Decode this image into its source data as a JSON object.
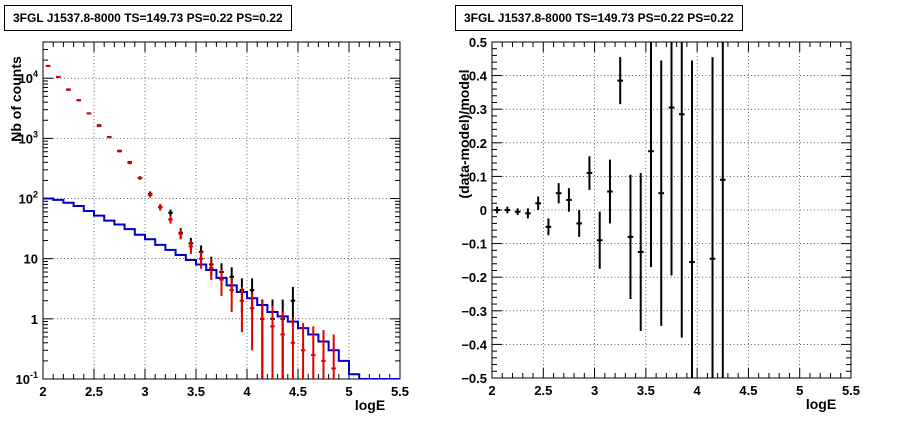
{
  "left_panel": {
    "title": "3FGL J1537.8-8000 TS=149.73 PS=0.22 PS=0.22"
  },
  "right_panel": {
    "title": "3FGL J1537.8-8000 TS=149.73 PS=0.22 PS=0.22"
  },
  "chart_data": [
    {
      "type": "scatter",
      "title": "3FGL J1537.8-8000 TS=149.73 PS=0.22 PS=0.22",
      "xlabel": "logE",
      "ylabel": "Nb of counts",
      "xlim": [
        2,
        5.5
      ],
      "ylim": [
        0.1,
        40000
      ],
      "yscale": "log",
      "grid": true,
      "x_ticks": [
        "2",
        "2.5",
        "3",
        "3.5",
        "4",
        "4.5",
        "5",
        "5.5"
      ],
      "y_ticks": [
        {
          "base": "10",
          "exp": "-1"
        },
        {
          "base": "1",
          "exp": ""
        },
        {
          "base": "10",
          "exp": ""
        },
        {
          "base": "10",
          "exp": "2"
        },
        {
          "base": "10",
          "exp": "3"
        },
        {
          "base": "10",
          "exp": "4"
        }
      ],
      "colors": {
        "data": "#000000",
        "model_total": "#dd0000",
        "background": "#0000cc"
      },
      "bin_edges": [
        2.0,
        2.1,
        2.2,
        2.3,
        2.4,
        2.5,
        2.6,
        2.7,
        2.8,
        2.9,
        3.0,
        3.1,
        3.2,
        3.3,
        3.4,
        3.5,
        3.6,
        3.7,
        3.8,
        3.9,
        4.0,
        4.1,
        4.2,
        4.3,
        4.4,
        4.5,
        4.6,
        4.7,
        4.8,
        4.9,
        5.0,
        5.1,
        5.2,
        5.3,
        5.4,
        5.5
      ],
      "series": [
        {
          "x": [
            2.05,
            2.15,
            2.25,
            2.35,
            2.45,
            2.55,
            2.65,
            2.75,
            2.85,
            2.95,
            3.05,
            3.15,
            3.25,
            3.35,
            3.45,
            3.55,
            3.65,
            3.75,
            3.85,
            3.95,
            4.05,
            4.15,
            4.25,
            4.35,
            4.45
          ],
          "y": [
            16000,
            10500,
            6500,
            4300,
            2600,
            1650,
            1050,
            620,
            400,
            220,
            120,
            72,
            58,
            27,
            18,
            13,
            8,
            6,
            5,
            3,
            3,
            1,
            1,
            1,
            2
          ],
          "yerr_low": [
            130,
            100,
            80,
            66,
            51,
            41,
            32,
            25,
            20,
            15,
            11,
            8.5,
            7.6,
            5.2,
            4.2,
            3.6,
            2.8,
            2.4,
            2.2,
            1.7,
            1.7,
            0.9,
            0.9,
            0.9,
            1.2
          ],
          "yerr_high": [
            130,
            100,
            80,
            66,
            51,
            41,
            32,
            25,
            20,
            15,
            11,
            8.5,
            7.6,
            5.2,
            4.2,
            3.6,
            2.8,
            2.4,
            2.2,
            1.7,
            1.7,
            1.1,
            1.1,
            1.1,
            1.4
          ]
        },
        {
          "x": [
            2.05,
            2.15,
            2.25,
            2.35,
            2.45,
            2.55,
            2.65,
            2.75,
            2.85,
            2.95,
            3.05,
            3.15,
            3.25,
            3.35,
            3.45,
            3.55,
            3.65,
            3.75,
            3.85,
            3.95,
            4.05,
            4.15,
            4.25,
            4.35,
            4.45,
            4.55,
            4.65,
            4.75,
            4.85
          ],
          "y": [
            16000,
            10500,
            6400,
            4300,
            2600,
            1600,
            1050,
            610,
            390,
            220,
            115,
            72,
            45,
            26,
            16,
            10,
            7,
            4.5,
            3,
            2,
            1.5,
            1,
            0.75,
            0.55,
            0.4,
            0.3,
            0.25,
            0.2,
            0.15
          ],
          "yerr_low": [
            130,
            100,
            80,
            66,
            51,
            40,
            32,
            25,
            20,
            15,
            11,
            8.5,
            6.7,
            5.1,
            4,
            3.2,
            2.6,
            2.1,
            1.7,
            1.4,
            1.2,
            0.95,
            0.65,
            0.45,
            0.32,
            0.22,
            0.17,
            0.12,
            0.08
          ],
          "yerr_high": [
            130,
            100,
            80,
            66,
            51,
            40,
            32,
            25,
            20,
            15,
            11,
            8.5,
            6.7,
            5.1,
            4,
            3.2,
            2.6,
            2.1,
            1.7,
            1.4,
            1.2,
            1.0,
            0.9,
            0.75,
            0.65,
            0.55,
            0.5,
            0.45,
            0.4
          ]
        },
        {
          "type": "step",
          "y": [
            100,
            95,
            85,
            75,
            62,
            52,
            43,
            37,
            31,
            25,
            21,
            17,
            14,
            11.5,
            9.5,
            8,
            6.5,
            4.8,
            3.6,
            2.8,
            2.2,
            1.7,
            1.3,
            1.1,
            0.9,
            0.7,
            0.55,
            0.42,
            0.3,
            0.2,
            0.12,
            0.1,
            0.1,
            0.1,
            0.1
          ]
        }
      ]
    },
    {
      "type": "scatter",
      "title": "3FGL J1537.8-8000 TS=149.73 PS=0.22 PS=0.22",
      "xlabel": "logE",
      "ylabel": "(data-model)/model",
      "xlim": [
        2,
        5.5
      ],
      "ylim": [
        -0.5,
        0.5
      ],
      "grid": true,
      "x_ticks": [
        "2",
        "2.5",
        "3",
        "3.5",
        "4",
        "4.5",
        "5",
        "5.5"
      ],
      "y_ticks": [
        "−0.5",
        "−0.4",
        "−0.3",
        "−0.2",
        "−0.1",
        "0",
        "0.1",
        "0.2",
        "0.3",
        "0.4",
        "0.5"
      ],
      "series": [
        {
          "x": [
            2.05,
            2.15,
            2.25,
            2.35,
            2.45,
            2.55,
            2.65,
            2.75,
            2.85,
            2.95,
            3.05,
            3.15,
            3.25,
            3.35,
            3.45,
            3.55,
            3.65,
            3.75,
            3.85,
            3.95,
            4.15,
            4.25
          ],
          "y": [
            0.0,
            0.0,
            -0.005,
            -0.01,
            0.02,
            -0.05,
            0.05,
            0.03,
            -0.04,
            0.11,
            -0.09,
            0.055,
            0.385,
            -0.08,
            -0.125,
            0.175,
            0.05,
            0.305,
            0.285,
            -0.155,
            -0.145,
            0.09
          ],
          "yerr": [
            0.01,
            0.01,
            0.01,
            0.015,
            0.02,
            0.025,
            0.03,
            0.035,
            0.04,
            0.05,
            0.085,
            0.095,
            0.07,
            0.185,
            0.235,
            0.345,
            0.395,
            0.5,
            0.665,
            0.6,
            0.6,
            0.6
          ]
        }
      ]
    }
  ]
}
